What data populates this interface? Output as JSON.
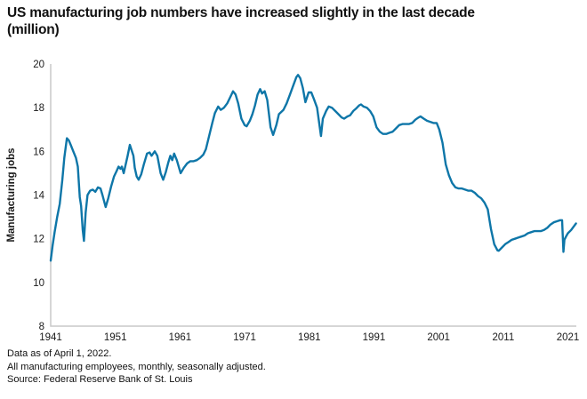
{
  "header": {
    "title_line1": "US manufacturing job numbers have increased slightly in the last decade",
    "title_line2": "(million)"
  },
  "footer": {
    "lines": [
      "Data as of April 1, 2022.",
      "All manufacturing employees, monthly, seasonally adjusted.",
      "Source: Federal Reserve Bank of St. Louis"
    ]
  },
  "chart_data": {
    "type": "line",
    "title": "US manufacturing job numbers have increased slightly in the last decade (million)",
    "xlabel": "",
    "ylabel": "Manufacturing jobs",
    "x_ticks": [
      1941,
      1951,
      1961,
      1971,
      1981,
      1991,
      2001,
      2011,
      2021
    ],
    "y_ticks": [
      8,
      10,
      12,
      14,
      16,
      18,
      20
    ],
    "xlim": [
      1941,
      2022.3
    ],
    "ylim": [
      8,
      20
    ],
    "grid": false,
    "legend": "none",
    "line_color": "#0e76a8",
    "axis_color": "#c9c9c9",
    "series": [
      {
        "name": "US manufacturing employees (million), monthly, seasonally adjusted",
        "points": [
          [
            1941.0,
            11.0
          ],
          [
            1941.3,
            11.7
          ],
          [
            1941.6,
            12.3
          ],
          [
            1942.0,
            13.0
          ],
          [
            1942.4,
            13.6
          ],
          [
            1942.8,
            14.7
          ],
          [
            1943.1,
            15.7
          ],
          [
            1943.5,
            16.6
          ],
          [
            1943.8,
            16.5
          ],
          [
            1944.1,
            16.3
          ],
          [
            1944.5,
            16.0
          ],
          [
            1944.9,
            15.7
          ],
          [
            1945.2,
            15.3
          ],
          [
            1945.5,
            13.9
          ],
          [
            1945.7,
            13.5
          ],
          [
            1945.95,
            12.4
          ],
          [
            1946.15,
            11.9
          ],
          [
            1946.4,
            13.2
          ],
          [
            1946.7,
            14.0
          ],
          [
            1947.1,
            14.2
          ],
          [
            1947.5,
            14.25
          ],
          [
            1947.9,
            14.15
          ],
          [
            1948.3,
            14.35
          ],
          [
            1948.7,
            14.3
          ],
          [
            1949.0,
            14.0
          ],
          [
            1949.5,
            13.45
          ],
          [
            1949.9,
            13.85
          ],
          [
            1950.35,
            14.4
          ],
          [
            1950.8,
            14.85
          ],
          [
            1951.2,
            15.1
          ],
          [
            1951.5,
            15.3
          ],
          [
            1951.8,
            15.2
          ],
          [
            1952.0,
            15.3
          ],
          [
            1952.3,
            15.0
          ],
          [
            1952.9,
            15.8
          ],
          [
            1953.25,
            16.3
          ],
          [
            1953.8,
            15.8
          ],
          [
            1954.0,
            15.25
          ],
          [
            1954.3,
            14.85
          ],
          [
            1954.6,
            14.7
          ],
          [
            1955.0,
            14.95
          ],
          [
            1955.4,
            15.4
          ],
          [
            1955.9,
            15.9
          ],
          [
            1956.3,
            15.95
          ],
          [
            1956.6,
            15.8
          ],
          [
            1957.1,
            16.0
          ],
          [
            1957.5,
            15.8
          ],
          [
            1958.0,
            15.0
          ],
          [
            1958.4,
            14.7
          ],
          [
            1958.8,
            15.05
          ],
          [
            1959.2,
            15.5
          ],
          [
            1959.5,
            15.8
          ],
          [
            1959.8,
            15.6
          ],
          [
            1960.1,
            15.9
          ],
          [
            1960.5,
            15.6
          ],
          [
            1961.1,
            15.0
          ],
          [
            1961.6,
            15.25
          ],
          [
            1962.1,
            15.45
          ],
          [
            1962.6,
            15.55
          ],
          [
            1963.1,
            15.55
          ],
          [
            1963.6,
            15.6
          ],
          [
            1964.1,
            15.7
          ],
          [
            1964.6,
            15.85
          ],
          [
            1965.0,
            16.1
          ],
          [
            1965.5,
            16.7
          ],
          [
            1966.0,
            17.3
          ],
          [
            1966.4,
            17.75
          ],
          [
            1966.9,
            18.05
          ],
          [
            1967.3,
            17.9
          ],
          [
            1967.8,
            18.0
          ],
          [
            1968.3,
            18.2
          ],
          [
            1968.8,
            18.5
          ],
          [
            1969.2,
            18.75
          ],
          [
            1969.6,
            18.6
          ],
          [
            1970.0,
            18.2
          ],
          [
            1970.5,
            17.5
          ],
          [
            1971.0,
            17.2
          ],
          [
            1971.3,
            17.15
          ],
          [
            1971.8,
            17.4
          ],
          [
            1972.2,
            17.7
          ],
          [
            1972.6,
            18.1
          ],
          [
            1973.0,
            18.6
          ],
          [
            1973.4,
            18.85
          ],
          [
            1973.7,
            18.65
          ],
          [
            1974.1,
            18.75
          ],
          [
            1974.5,
            18.35
          ],
          [
            1975.0,
            17.1
          ],
          [
            1975.4,
            16.75
          ],
          [
            1975.9,
            17.2
          ],
          [
            1976.3,
            17.7
          ],
          [
            1977.0,
            17.9
          ],
          [
            1977.5,
            18.2
          ],
          [
            1978.0,
            18.6
          ],
          [
            1978.5,
            19.0
          ],
          [
            1979.0,
            19.4
          ],
          [
            1979.25,
            19.5
          ],
          [
            1979.6,
            19.35
          ],
          [
            1980.0,
            18.9
          ],
          [
            1980.4,
            18.25
          ],
          [
            1980.9,
            18.7
          ],
          [
            1981.3,
            18.7
          ],
          [
            1981.7,
            18.4
          ],
          [
            1982.2,
            18.0
          ],
          [
            1982.8,
            16.7
          ],
          [
            1983.1,
            17.5
          ],
          [
            1983.6,
            17.85
          ],
          [
            1984.0,
            18.05
          ],
          [
            1984.5,
            18.0
          ],
          [
            1985.0,
            17.85
          ],
          [
            1985.5,
            17.7
          ],
          [
            1986.0,
            17.55
          ],
          [
            1986.4,
            17.5
          ],
          [
            1986.9,
            17.6
          ],
          [
            1987.3,
            17.65
          ],
          [
            1987.8,
            17.85
          ],
          [
            1988.2,
            17.95
          ],
          [
            1988.7,
            18.1
          ],
          [
            1989.0,
            18.15
          ],
          [
            1989.4,
            18.05
          ],
          [
            1989.9,
            18.0
          ],
          [
            1990.4,
            17.85
          ],
          [
            1990.9,
            17.6
          ],
          [
            1991.4,
            17.1
          ],
          [
            1991.9,
            16.9
          ],
          [
            1992.4,
            16.8
          ],
          [
            1992.9,
            16.8
          ],
          [
            1993.4,
            16.85
          ],
          [
            1993.9,
            16.9
          ],
          [
            1994.4,
            17.05
          ],
          [
            1994.9,
            17.2
          ],
          [
            1995.4,
            17.25
          ],
          [
            1995.9,
            17.25
          ],
          [
            1996.4,
            17.25
          ],
          [
            1996.9,
            17.3
          ],
          [
            1997.4,
            17.45
          ],
          [
            1997.9,
            17.55
          ],
          [
            1998.2,
            17.6
          ],
          [
            1998.7,
            17.5
          ],
          [
            1999.2,
            17.4
          ],
          [
            1999.7,
            17.35
          ],
          [
            2000.2,
            17.3
          ],
          [
            2000.7,
            17.3
          ],
          [
            2001.1,
            17.0
          ],
          [
            2001.6,
            16.4
          ],
          [
            2002.1,
            15.4
          ],
          [
            2002.6,
            14.9
          ],
          [
            2003.1,
            14.55
          ],
          [
            2003.6,
            14.35
          ],
          [
            2004.1,
            14.3
          ],
          [
            2004.6,
            14.3
          ],
          [
            2005.1,
            14.25
          ],
          [
            2005.6,
            14.2
          ],
          [
            2006.1,
            14.2
          ],
          [
            2006.6,
            14.1
          ],
          [
            2007.1,
            13.95
          ],
          [
            2007.6,
            13.85
          ],
          [
            2008.1,
            13.65
          ],
          [
            2008.6,
            13.35
          ],
          [
            2009.1,
            12.45
          ],
          [
            2009.6,
            11.75
          ],
          [
            2010.1,
            11.47
          ],
          [
            2010.3,
            11.45
          ],
          [
            2010.8,
            11.6
          ],
          [
            2011.3,
            11.75
          ],
          [
            2011.8,
            11.85
          ],
          [
            2012.3,
            11.95
          ],
          [
            2012.8,
            12.0
          ],
          [
            2013.3,
            12.05
          ],
          [
            2013.8,
            12.1
          ],
          [
            2014.3,
            12.15
          ],
          [
            2014.8,
            12.25
          ],
          [
            2015.3,
            12.3
          ],
          [
            2015.8,
            12.35
          ],
          [
            2016.3,
            12.35
          ],
          [
            2016.8,
            12.35
          ],
          [
            2017.3,
            12.4
          ],
          [
            2017.8,
            12.5
          ],
          [
            2018.3,
            12.65
          ],
          [
            2018.8,
            12.75
          ],
          [
            2019.3,
            12.8
          ],
          [
            2019.8,
            12.85
          ],
          [
            2020.1,
            12.85
          ],
          [
            2020.3,
            11.4
          ],
          [
            2020.45,
            11.95
          ],
          [
            2020.7,
            12.1
          ],
          [
            2021.0,
            12.25
          ],
          [
            2021.5,
            12.4
          ],
          [
            2022.0,
            12.6
          ],
          [
            2022.25,
            12.7
          ]
        ]
      }
    ]
  }
}
